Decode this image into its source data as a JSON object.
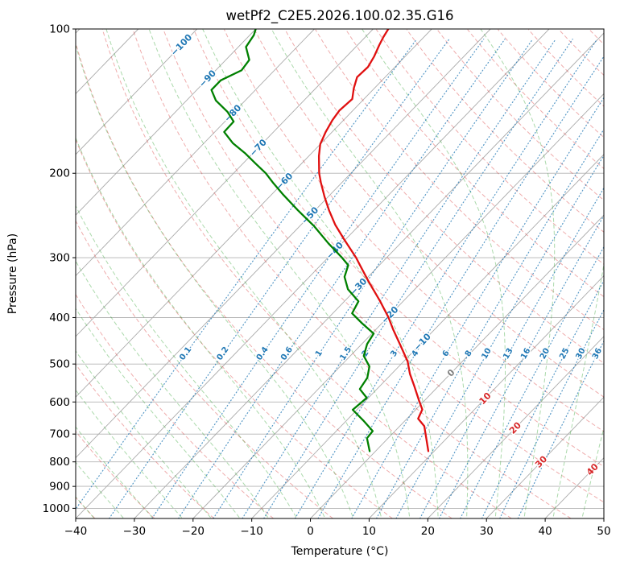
{
  "title": "wetPf2_C2E5.2026.100.02.35.G16",
  "axes": {
    "xlabel": "Temperature (°C)",
    "ylabel": "Pressure (hPa)",
    "xlim": [
      -40,
      50
    ],
    "ylim": [
      1050,
      100
    ],
    "x_ticks": [
      -40,
      -30,
      -20,
      -10,
      0,
      10,
      20,
      30,
      40,
      50
    ],
    "y_ticks": [
      100,
      200,
      300,
      400,
      500,
      600,
      700,
      800,
      900,
      1000
    ]
  },
  "chart_data": {
    "type": "line",
    "subtype": "skew-t-log-p",
    "skew_deg_C_per_decade": 79,
    "series": [
      {
        "name": "temperature",
        "color": "#e01010",
        "points_p_hPa_T_C": [
          [
            760,
            9.0
          ],
          [
            714,
            6.5
          ],
          [
            674,
            4.2
          ],
          [
            650,
            1.9
          ],
          [
            622,
            1.1
          ],
          [
            595,
            -1.0
          ],
          [
            555,
            -4.2
          ],
          [
            524,
            -6.9
          ],
          [
            494,
            -9.3
          ],
          [
            458,
            -13.1
          ],
          [
            424,
            -17.0
          ],
          [
            400,
            -19.8
          ],
          [
            370,
            -23.9
          ],
          [
            336,
            -29.2
          ],
          [
            311,
            -33.3
          ],
          [
            300,
            -35.2
          ],
          [
            275,
            -40.2
          ],
          [
            256,
            -44.2
          ],
          [
            239,
            -47.6
          ],
          [
            224,
            -50.6
          ],
          [
            209,
            -53.6
          ],
          [
            200,
            -55.4
          ],
          [
            184,
            -58.3
          ],
          [
            174,
            -60.0
          ],
          [
            164,
            -61.1
          ],
          [
            155,
            -61.9
          ],
          [
            148,
            -62.3
          ],
          [
            140,
            -62.0
          ],
          [
            133,
            -63.5
          ],
          [
            126,
            -64.8
          ],
          [
            120,
            -64.6
          ],
          [
            114,
            -65.3
          ],
          [
            108,
            -66.3
          ],
          [
            104,
            -66.9
          ],
          [
            100,
            -67.4
          ]
        ]
      },
      {
        "name": "dewpoint",
        "color": "#008000",
        "points_p_hPa_T_C": [
          [
            760,
            -1.0
          ],
          [
            714,
            -3.6
          ],
          [
            690,
            -3.8
          ],
          [
            658,
            -6.9
          ],
          [
            623,
            -10.7
          ],
          [
            588,
            -10.3
          ],
          [
            564,
            -12.9
          ],
          [
            534,
            -13.5
          ],
          [
            506,
            -15.0
          ],
          [
            481,
            -17.7
          ],
          [
            454,
            -19.1
          ],
          [
            432,
            -19.7
          ],
          [
            411,
            -23.4
          ],
          [
            392,
            -26.7
          ],
          [
            370,
            -27.6
          ],
          [
            349,
            -31.4
          ],
          [
            329,
            -34.0
          ],
          [
            311,
            -35.3
          ],
          [
            300,
            -37.6
          ],
          [
            280,
            -42.3
          ],
          [
            258,
            -47.5
          ],
          [
            239,
            -52.9
          ],
          [
            222,
            -57.9
          ],
          [
            209,
            -61.8
          ],
          [
            200,
            -64.5
          ],
          [
            191,
            -67.8
          ],
          [
            182,
            -71.2
          ],
          [
            173,
            -75.1
          ],
          [
            164,
            -78.4
          ],
          [
            156,
            -78.5
          ],
          [
            149,
            -81.1
          ],
          [
            141,
            -85.0
          ],
          [
            134,
            -87.5
          ],
          [
            128,
            -87.5
          ],
          [
            122,
            -85.6
          ],
          [
            116,
            -86.0
          ],
          [
            109,
            -88.7
          ],
          [
            103,
            -89.3
          ],
          [
            100,
            -90.0
          ]
        ]
      }
    ],
    "isotherms": {
      "min": -150,
      "max": 50,
      "step": 10,
      "color": "#ababab"
    },
    "isotherm_labels": [
      {
        "value": -100,
        "p": 108
      },
      {
        "value": -90,
        "p": 127
      },
      {
        "value": -80,
        "p": 150
      },
      {
        "value": -70,
        "p": 177
      },
      {
        "value": -60,
        "p": 208
      },
      {
        "value": -50,
        "p": 245
      },
      {
        "value": -40,
        "p": 290
      },
      {
        "value": -30,
        "p": 345
      },
      {
        "value": -20,
        "p": 395
      },
      {
        "value": -10,
        "p": 450
      },
      {
        "value": 0,
        "p": 522
      },
      {
        "value": 10,
        "p": 590
      },
      {
        "value": 20,
        "p": 680
      },
      {
        "value": 30,
        "p": 800
      },
      {
        "value": 40,
        "p": 830
      }
    ],
    "isotherm_label_colors": {
      "negative": "#1f77b4",
      "zero": "#7f7f7f",
      "positive": "#d62728"
    },
    "dry_adiabats": {
      "min": -40,
      "max": 200,
      "step": 10,
      "color": "rgba(214,39,40,0.38)"
    },
    "moist_adiabats": {
      "min": -40,
      "max": 45,
      "step": 5,
      "color": "rgba(44,160,44,0.40)"
    },
    "mixing_ratio": {
      "values_g_kg": [
        0.1,
        0.2,
        0.4,
        0.6,
        1,
        1.5,
        2,
        3,
        4,
        6,
        8,
        10,
        13,
        16,
        20,
        25,
        30,
        36
      ],
      "label_pressure_hPa": 476,
      "color": "rgba(31,119,180,0.75)",
      "label_color": "#1f77b4"
    }
  }
}
